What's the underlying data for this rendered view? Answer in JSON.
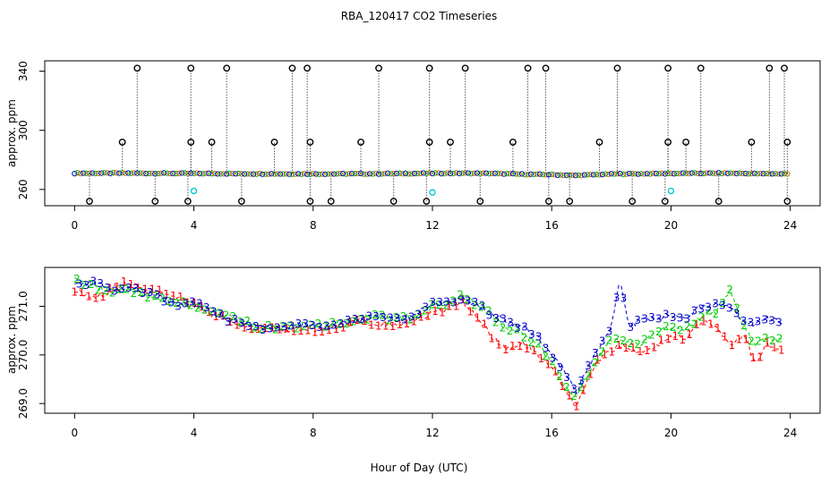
{
  "chart_data": [
    {
      "type": "scatter",
      "title": "RBA_120417  CO2 Timeseries",
      "xlabel": "",
      "ylabel": "approx. ppm",
      "xlim": [
        -1,
        25
      ],
      "ylim": [
        249,
        347
      ],
      "xticks": [
        0,
        4,
        8,
        12,
        16,
        20,
        24
      ],
      "yticks": [
        260,
        300,
        340
      ],
      "baseline": [
        [
          0,
          271
        ],
        [
          2,
          271
        ],
        [
          4,
          270.8
        ],
        [
          6,
          270.6
        ],
        [
          8,
          270.5
        ],
        [
          10,
          270.6
        ],
        [
          12,
          270.9
        ],
        [
          13,
          271
        ],
        [
          14,
          270.8
        ],
        [
          15,
          270.3
        ],
        [
          16,
          270
        ],
        [
          16.8,
          269.5
        ],
        [
          17.5,
          270
        ],
        [
          18.2,
          270.5
        ],
        [
          19,
          270.6
        ],
        [
          20,
          270.8
        ],
        [
          21,
          270.9
        ],
        [
          22,
          271
        ],
        [
          23,
          270.6
        ],
        [
          23.8,
          270.6
        ]
      ],
      "spikes": [
        {
          "x": 2.1,
          "y": 342
        },
        {
          "x": 3.9,
          "y": 342
        },
        {
          "x": 5.1,
          "y": 342
        },
        {
          "x": 7.3,
          "y": 342
        },
        {
          "x": 7.8,
          "y": 342
        },
        {
          "x": 10.2,
          "y": 342
        },
        {
          "x": 11.9,
          "y": 342
        },
        {
          "x": 13.1,
          "y": 342
        },
        {
          "x": 15.2,
          "y": 342
        },
        {
          "x": 15.8,
          "y": 342
        },
        {
          "x": 18.2,
          "y": 342
        },
        {
          "x": 19.9,
          "y": 342
        },
        {
          "x": 21.0,
          "y": 342
        },
        {
          "x": 23.3,
          "y": 342
        },
        {
          "x": 23.8,
          "y": 342
        },
        {
          "x": 1.6,
          "y": 292
        },
        {
          "x": 3.9,
          "y": 292
        },
        {
          "x": 4.6,
          "y": 292
        },
        {
          "x": 6.7,
          "y": 292
        },
        {
          "x": 7.9,
          "y": 292
        },
        {
          "x": 9.6,
          "y": 292
        },
        {
          "x": 11.9,
          "y": 292
        },
        {
          "x": 12.6,
          "y": 292
        },
        {
          "x": 14.7,
          "y": 292
        },
        {
          "x": 17.6,
          "y": 292
        },
        {
          "x": 19.9,
          "y": 292
        },
        {
          "x": 20.5,
          "y": 292
        },
        {
          "x": 22.7,
          "y": 292
        },
        {
          "x": 23.9,
          "y": 292
        },
        {
          "x": 0.5,
          "y": 252
        },
        {
          "x": 2.7,
          "y": 252
        },
        {
          "x": 3.8,
          "y": 252
        },
        {
          "x": 5.6,
          "y": 252
        },
        {
          "x": 7.9,
          "y": 252
        },
        {
          "x": 8.6,
          "y": 252
        },
        {
          "x": 10.7,
          "y": 252
        },
        {
          "x": 11.8,
          "y": 252
        },
        {
          "x": 13.6,
          "y": 252
        },
        {
          "x": 15.9,
          "y": 252
        },
        {
          "x": 16.6,
          "y": 252
        },
        {
          "x": 18.7,
          "y": 252
        },
        {
          "x": 19.8,
          "y": 252
        },
        {
          "x": 21.6,
          "y": 252
        },
        {
          "x": 23.9,
          "y": 252
        }
      ],
      "cyan_points": [
        {
          "x": 4.0,
          "y": 259
        },
        {
          "x": 12.0,
          "y": 258
        },
        {
          "x": 20.0,
          "y": 259
        }
      ]
    },
    {
      "type": "line",
      "title": "",
      "xlabel": "Hour of Day (UTC)",
      "ylabel": "approx. ppm",
      "xlim": [
        -1,
        25
      ],
      "ylim": [
        268.8,
        271.8
      ],
      "xticks": [
        0,
        4,
        8,
        12,
        16,
        20,
        24
      ],
      "yticks": [
        269.0,
        270.0,
        271.0
      ],
      "ytick_labels": [
        "269.0",
        "270.0",
        "271.0"
      ],
      "series": [
        {
          "name": "1",
          "color": "#ff0000",
          "points": [
            [
              0,
              271.35
            ],
            [
              0.5,
              271.2
            ],
            [
              1,
              271.25
            ],
            [
              1.5,
              271.45
            ],
            [
              2,
              271.45
            ],
            [
              2.5,
              271.35
            ],
            [
              3,
              271.3
            ],
            [
              3.5,
              271.15
            ],
            [
              4,
              271.05
            ],
            [
              4.5,
              270.85
            ],
            [
              5,
              270.75
            ],
            [
              5.5,
              270.6
            ],
            [
              6,
              270.55
            ],
            [
              6.5,
              270.55
            ],
            [
              7,
              270.5
            ],
            [
              7.5,
              270.55
            ],
            [
              8,
              270.5
            ],
            [
              8.5,
              270.55
            ],
            [
              9,
              270.6
            ],
            [
              9.5,
              270.7
            ],
            [
              10,
              270.65
            ],
            [
              10.5,
              270.6
            ],
            [
              11,
              270.65
            ],
            [
              11.5,
              270.75
            ],
            [
              12,
              270.85
            ],
            [
              12.5,
              270.95
            ],
            [
              13,
              271.1
            ],
            [
              13.5,
              270.8
            ],
            [
              14,
              270.35
            ],
            [
              14.5,
              270.1
            ],
            [
              15,
              270.25
            ],
            [
              15.5,
              270.0
            ],
            [
              16,
              269.8
            ],
            [
              16.5,
              269.2
            ],
            [
              16.8,
              268.9
            ],
            [
              17.2,
              269.5
            ],
            [
              17.6,
              269.9
            ],
            [
              18,
              270.1
            ],
            [
              18.5,
              270.2
            ],
            [
              19,
              270.0
            ],
            [
              19.5,
              270.2
            ],
            [
              20,
              270.4
            ],
            [
              20.5,
              270.3
            ],
            [
              21,
              270.7
            ],
            [
              21.5,
              270.6
            ],
            [
              22,
              270.2
            ],
            [
              22.5,
              270.4
            ],
            [
              22.8,
              269.8
            ],
            [
              23.2,
              270.2
            ],
            [
              23.7,
              270.1
            ]
          ]
        },
        {
          "name": "2",
          "color": "#00cc00",
          "points": [
            [
              0,
              271.55
            ],
            [
              0.5,
              271.4
            ],
            [
              1,
              271.35
            ],
            [
              1.5,
              271.3
            ],
            [
              2,
              271.3
            ],
            [
              2.5,
              271.2
            ],
            [
              3,
              271.15
            ],
            [
              3.5,
              271.1
            ],
            [
              4,
              271.0
            ],
            [
              4.5,
              270.9
            ],
            [
              5,
              270.8
            ],
            [
              5.5,
              270.75
            ],
            [
              6,
              270.6
            ],
            [
              6.5,
              270.55
            ],
            [
              7,
              270.6
            ],
            [
              7.5,
              270.55
            ],
            [
              8,
              270.6
            ],
            [
              8.5,
              270.6
            ],
            [
              9,
              270.65
            ],
            [
              9.5,
              270.75
            ],
            [
              10,
              270.8
            ],
            [
              10.5,
              270.75
            ],
            [
              11,
              270.75
            ],
            [
              11.5,
              270.8
            ],
            [
              12,
              271.0
            ],
            [
              12.5,
              271.05
            ],
            [
              13,
              271.2
            ],
            [
              13.5,
              271.05
            ],
            [
              14,
              270.8
            ],
            [
              14.5,
              270.5
            ],
            [
              15,
              270.45
            ],
            [
              15.5,
              270.2
            ],
            [
              16,
              269.9
            ],
            [
              16.5,
              269.3
            ],
            [
              16.8,
              269.15
            ],
            [
              17.2,
              269.6
            ],
            [
              17.6,
              270.0
            ],
            [
              18,
              270.3
            ],
            [
              18.5,
              270.3
            ],
            [
              19,
              270.2
            ],
            [
              19.5,
              270.5
            ],
            [
              20,
              270.55
            ],
            [
              20.5,
              270.5
            ],
            [
              21,
              270.8
            ],
            [
              21.5,
              270.9
            ],
            [
              22,
              271.35
            ],
            [
              22.4,
              270.6
            ],
            [
              22.8,
              270.2
            ],
            [
              23.2,
              270.3
            ],
            [
              23.8,
              270.3
            ]
          ]
        },
        {
          "name": "3",
          "color": "#0000cc",
          "points": [
            [
              0,
              271.45
            ],
            [
              0.5,
              271.5
            ],
            [
              1,
              271.4
            ],
            [
              1.5,
              271.35
            ],
            [
              2,
              271.35
            ],
            [
              2.5,
              271.25
            ],
            [
              3,
              271.15
            ],
            [
              3.5,
              271.05
            ],
            [
              4,
              271.05
            ],
            [
              4.5,
              270.9
            ],
            [
              5,
              270.75
            ],
            [
              5.5,
              270.7
            ],
            [
              6,
              270.6
            ],
            [
              6.5,
              270.55
            ],
            [
              7,
              270.6
            ],
            [
              7.5,
              270.6
            ],
            [
              8,
              270.6
            ],
            [
              8.5,
              270.55
            ],
            [
              9,
              270.65
            ],
            [
              9.5,
              270.7
            ],
            [
              10,
              270.8
            ],
            [
              10.5,
              270.8
            ],
            [
              11,
              270.75
            ],
            [
              11.5,
              270.85
            ],
            [
              12,
              271.05
            ],
            [
              12.5,
              271.1
            ],
            [
              13,
              271.15
            ],
            [
              13.5,
              271.0
            ],
            [
              14,
              270.85
            ],
            [
              14.5,
              270.7
            ],
            [
              15,
              270.55
            ],
            [
              15.5,
              270.4
            ],
            [
              16,
              270.0
            ],
            [
              16.5,
              269.6
            ],
            [
              16.8,
              269.2
            ],
            [
              17.2,
              269.7
            ],
            [
              17.6,
              270.2
            ],
            [
              18,
              270.6
            ],
            [
              18.3,
              271.55
            ],
            [
              18.6,
              270.6
            ],
            [
              19,
              270.7
            ],
            [
              19.5,
              270.75
            ],
            [
              20,
              270.8
            ],
            [
              20.5,
              270.75
            ],
            [
              21,
              271.0
            ],
            [
              21.5,
              271.0
            ],
            [
              22,
              271.0
            ],
            [
              22.4,
              270.7
            ],
            [
              22.8,
              270.6
            ],
            [
              23.2,
              270.75
            ],
            [
              23.7,
              270.7
            ]
          ]
        }
      ]
    }
  ]
}
